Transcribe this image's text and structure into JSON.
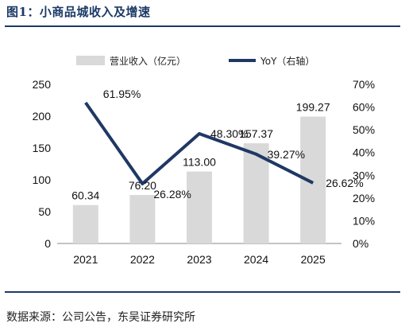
{
  "title": "图1：小商品城收入及增速",
  "source": "数据来源：公司公告，东吴证券研究所",
  "chart_data": {
    "type": "bar+line",
    "categories": [
      "2021",
      "2022",
      "2023",
      "2024",
      "2025"
    ],
    "series": [
      {
        "name": "营业收入（亿元）",
        "type": "bar",
        "axis": "left",
        "values": [
          60.34,
          76.2,
          113.0,
          157.37,
          199.27
        ],
        "labels": [
          "60.34",
          "76.20",
          "113.00",
          "157.37",
          "199.27"
        ],
        "color": "#d9d9d9"
      },
      {
        "name": "YoY（右轴）",
        "type": "line",
        "axis": "right",
        "values": [
          61.95,
          26.28,
          48.3,
          39.27,
          26.62
        ],
        "labels": [
          "61.95%",
          "26.28%",
          "48.30%",
          "39.27%",
          "26.62%"
        ],
        "color": "#1f3864"
      }
    ],
    "y_left": {
      "ylim": [
        0,
        250
      ],
      "ticks": [
        "0",
        "50",
        "100",
        "150",
        "200",
        "250"
      ]
    },
    "y_right": {
      "ylim": [
        0,
        70
      ],
      "ticks": [
        "0%",
        "10%",
        "20%",
        "30%",
        "40%",
        "50%",
        "60%",
        "70%"
      ]
    },
    "legend_position": "top",
    "grid": false
  }
}
